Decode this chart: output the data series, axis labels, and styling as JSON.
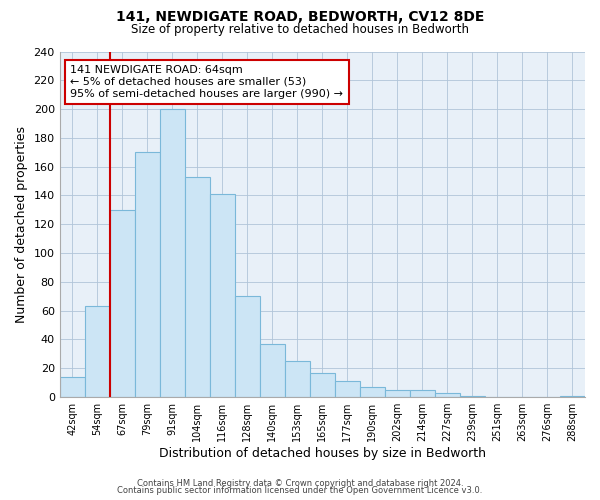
{
  "title": "141, NEWDIGATE ROAD, BEDWORTH, CV12 8DE",
  "subtitle": "Size of property relative to detached houses in Bedworth",
  "xlabel": "Distribution of detached houses by size in Bedworth",
  "ylabel": "Number of detached properties",
  "bar_labels": [
    "42sqm",
    "54sqm",
    "67sqm",
    "79sqm",
    "91sqm",
    "104sqm",
    "116sqm",
    "128sqm",
    "140sqm",
    "153sqm",
    "165sqm",
    "177sqm",
    "190sqm",
    "202sqm",
    "214sqm",
    "227sqm",
    "239sqm",
    "251sqm",
    "263sqm",
    "276sqm",
    "288sqm"
  ],
  "bar_heights": [
    14,
    63,
    130,
    170,
    200,
    153,
    141,
    70,
    37,
    25,
    17,
    11,
    7,
    5,
    5,
    3,
    1,
    0,
    0,
    0,
    1
  ],
  "bar_color_fill": "#cce5f5",
  "bar_color_edge": "#7ab8d9",
  "plot_bg_color": "#e8f0f8",
  "vline_x": 2,
  "vline_color": "#cc0000",
  "annotation_text": "141 NEWDIGATE ROAD: 64sqm\n← 5% of detached houses are smaller (53)\n95% of semi-detached houses are larger (990) →",
  "annotation_box_color": "#ffffff",
  "annotation_box_edgecolor": "#cc0000",
  "ylim": [
    0,
    240
  ],
  "yticks": [
    0,
    20,
    40,
    60,
    80,
    100,
    120,
    140,
    160,
    180,
    200,
    220,
    240
  ],
  "footer_line1": "Contains HM Land Registry data © Crown copyright and database right 2024.",
  "footer_line2": "Contains public sector information licensed under the Open Government Licence v3.0.",
  "fig_width": 6.0,
  "fig_height": 5.0,
  "bg_color": "#ffffff"
}
